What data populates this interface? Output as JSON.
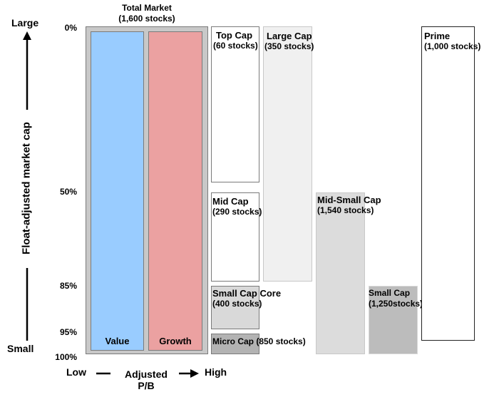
{
  "yaxis": {
    "top_label": "Large",
    "bottom_label": "Small",
    "title": "Float-adjusted market cap",
    "ticks": [
      "0%",
      "50%",
      "85%",
      "95%",
      "100%"
    ]
  },
  "xaxis": {
    "low_label": "Low",
    "title_line1": "Adjusted",
    "title_line2": "P/B",
    "high_label": "High"
  },
  "total_market": {
    "line1": "Total Market",
    "line2": "(1,600 stocks)"
  },
  "value_label": "Value",
  "growth_label": "Growth",
  "top_cap": {
    "line1": "Top Cap",
    "line2": "(60 stocks)"
  },
  "mid_cap": {
    "line1": "Mid Cap",
    "line2": "(290 stocks)"
  },
  "small_cap_core": {
    "line1": "Small Cap Core",
    "line2": "(400 stocks)"
  },
  "micro_cap": {
    "line1": "Micro Cap (850 stocks)"
  },
  "large_cap": {
    "line1": "Large Cap",
    "line2": "(350 stocks)"
  },
  "mid_small_cap": {
    "line1": "Mid-Small Cap",
    "line2": "(1,540 stocks)"
  },
  "small_cap": {
    "line1": "Small Cap",
    "line2": "(1,250stocks)"
  },
  "prime": {
    "line1": "Prime",
    "line2": "(1,000 stocks)"
  },
  "colors": {
    "value": "#99ccff",
    "growth": "#eba1a1",
    "total_frame": "#c8c8c8",
    "large_cap": "#f0f0f0",
    "mid_small_cap": "#dcdcdc",
    "small_cap": "#bcbcbc",
    "small_cap_core": "#d9d9d9",
    "micro_cap": "#b3b3b3"
  }
}
